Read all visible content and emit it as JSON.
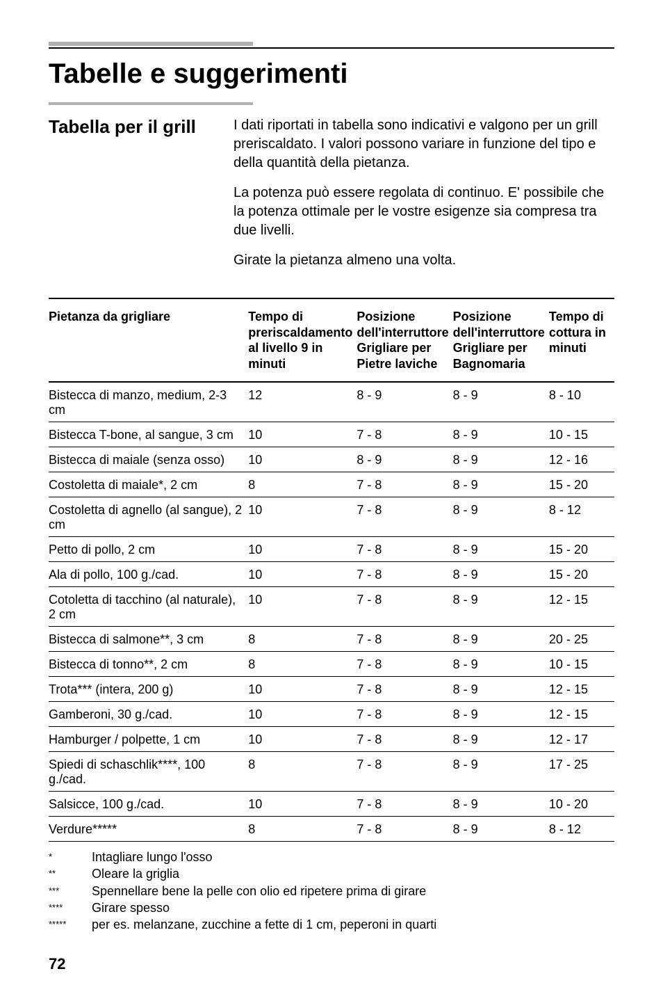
{
  "page": {
    "title": "Tabelle e suggerimenti",
    "section_title": "Tabella per il grill",
    "intro_p1": "I dati riportati in tabella sono indicativi e valgono per un grill preriscaldato. I valori possono variare in funzione del tipo e della quantità della pietanza.",
    "intro_p2": "La potenza può essere regolata di continuo. E' possibile che la potenza ottimale per le vostre esigenze sia compresa tra due livelli.",
    "intro_p3": "Girate la pietanza almeno una volta.",
    "page_number": "72"
  },
  "colors": {
    "rule_gray": "#b0b0b0",
    "rule_black": "#000000",
    "text": "#000000",
    "background": "#ffffff"
  },
  "typography": {
    "title_fontsize": 40,
    "section_fontsize": 26,
    "body_fontsize": 20,
    "table_fontsize": 18,
    "footnote_fontsize": 18,
    "page_number_fontsize": 22,
    "font_family": "Helvetica, Arial, sans-serif"
  },
  "table": {
    "columns": [
      "Pietanza da grigliare",
      "Tempo di preriscaldamento al livello 9 in minuti",
      "Posizione dell'interruttore Grigliare per Pietre laviche",
      "Posizione dell'interruttore Grigliare per Bagnomaria",
      "Tempo di cottura in minuti"
    ],
    "col_widths_pct": [
      38,
      18,
      16,
      16,
      12
    ],
    "rows": [
      [
        "Bistecca di manzo, medium, 2-3 cm",
        "12",
        "8 - 9",
        "8 - 9",
        "8 - 10"
      ],
      [
        "Bistecca T-bone, al sangue, 3 cm",
        "10",
        "7 - 8",
        "8 - 9",
        "10 - 15"
      ],
      [
        "Bistecca di maiale (senza osso)",
        "10",
        "8 - 9",
        "8 - 9",
        "12 - 16"
      ],
      [
        "Costoletta di maiale*, 2 cm",
        "8",
        "7 - 8",
        "8 - 9",
        "15 - 20"
      ],
      [
        "Costoletta di agnello (al sangue), 2 cm",
        "10",
        "7 - 8",
        "8 - 9",
        "8 - 12"
      ],
      [
        "Petto di pollo, 2 cm",
        "10",
        "7 - 8",
        "8 - 9",
        "15 - 20"
      ],
      [
        "Ala di pollo, 100 g./cad.",
        "10",
        "7 - 8",
        "8 - 9",
        "15 - 20"
      ],
      [
        "Cotoletta di tacchino (al naturale), 2 cm",
        "10",
        "7 - 8",
        "8 - 9",
        "12 - 15"
      ],
      [
        "Bistecca di salmone**, 3 cm",
        "8",
        "7 - 8",
        "8 - 9",
        "20 - 25"
      ],
      [
        "Bistecca di tonno**, 2 cm",
        "8",
        "7 - 8",
        "8 - 9",
        "10 - 15"
      ],
      [
        "Trota*** (intera, 200 g)",
        "10",
        "7 - 8",
        "8 - 9",
        "12 - 15"
      ],
      [
        "Gamberoni, 30 g./cad.",
        "10",
        "7 - 8",
        "8 - 9",
        "12 - 15"
      ],
      [
        "Hamburger / polpette, 1 cm",
        "10",
        "7 - 8",
        "8 - 9",
        "12 - 17"
      ],
      [
        "Spiedi di schaschlik****, 100 g./cad.",
        "8",
        "7 - 8",
        "8 - 9",
        "17 - 25"
      ],
      [
        "Salsicce, 100 g./cad.",
        "10",
        "7 - 8",
        "8 - 9",
        "10 - 20"
      ],
      [
        "Verdure*****",
        "8",
        "7 - 8",
        "8 - 9",
        "8 - 12"
      ]
    ]
  },
  "footnotes": [
    {
      "symbol": "*",
      "text": "Intagliare lungo l'osso"
    },
    {
      "symbol": "**",
      "text": "Oleare la griglia"
    },
    {
      "symbol": "***",
      "text": "Spennellare bene la pelle con olio ed ripetere prima di girare"
    },
    {
      "symbol": "****",
      "text": "Girare spesso"
    },
    {
      "symbol": "*****",
      "text": "per es. melanzane, zucchine a fette di 1 cm, peperoni in quarti"
    }
  ]
}
